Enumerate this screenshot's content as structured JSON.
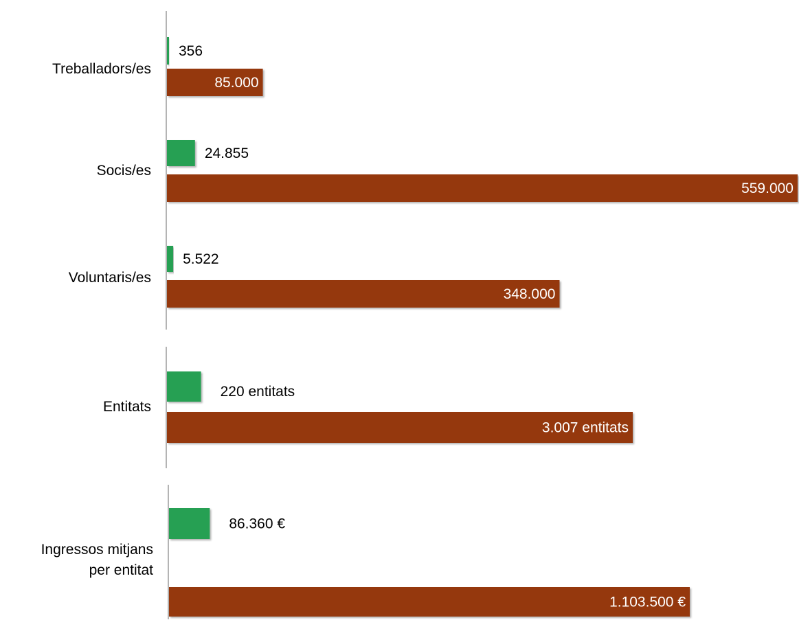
{
  "colors": {
    "green": "#26a052",
    "brown": "#953711"
  },
  "chart_data": [
    {
      "type": "bar",
      "orientation": "horizontal",
      "categories": [
        "Treballadors/es",
        "Socis/es",
        "Voluntaris/es"
      ],
      "series": [
        {
          "color": "#26a052",
          "values": [
            356,
            24855,
            5522
          ],
          "labels": [
            "356",
            "24.855",
            "5.522"
          ]
        },
        {
          "color": "#953711",
          "values": [
            85000,
            559000,
            348000
          ],
          "labels": [
            "85.000",
            "559.000",
            "348.000"
          ]
        }
      ],
      "xlim": [
        0,
        559000
      ]
    },
    {
      "type": "bar",
      "orientation": "horizontal",
      "categories": [
        "Entitats"
      ],
      "series": [
        {
          "color": "#26a052",
          "values": [
            220
          ],
          "labels": [
            "220 entitats"
          ]
        },
        {
          "color": "#953711",
          "values": [
            3007
          ],
          "labels": [
            "3.007 entitats"
          ]
        }
      ],
      "xlim": [
        0,
        3007
      ]
    },
    {
      "type": "bar",
      "orientation": "horizontal",
      "categories": [
        "Ingressos mitjans per entitat"
      ],
      "category_lines": [
        [
          "Ingressos mitjans",
          "per entitat"
        ]
      ],
      "series": [
        {
          "color": "#26a052",
          "values": [
            86360
          ],
          "labels": [
            "86.360 €"
          ]
        },
        {
          "color": "#953711",
          "values": [
            1103500
          ],
          "labels": [
            "1.103.500 €"
          ]
        }
      ],
      "xlim": [
        0,
        1103500
      ]
    }
  ]
}
